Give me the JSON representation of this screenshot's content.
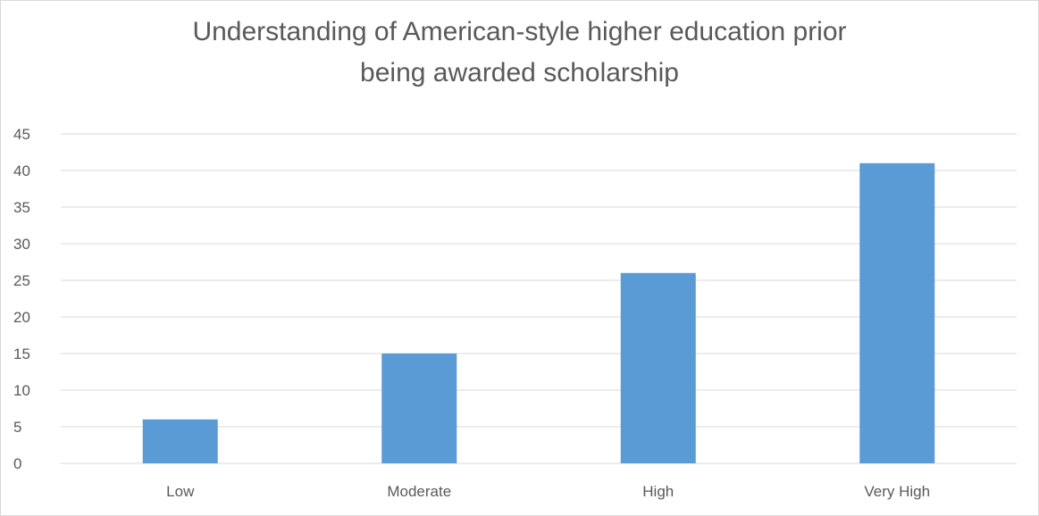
{
  "chart_data": {
    "type": "bar",
    "title_lines": [
      "Understanding of American-style higher education prior",
      "being awarded scholarship"
    ],
    "categories": [
      "Low",
      "Moderate",
      "High",
      "Very High"
    ],
    "values": [
      6,
      15,
      26,
      41
    ],
    "y_ticks": [
      "0",
      "5",
      "10",
      "15",
      "20",
      "25",
      "30",
      "35",
      "40",
      "45"
    ],
    "ylim": [
      0,
      45
    ],
    "xlabel": "",
    "ylabel": "",
    "grid": true,
    "legend": "none",
    "bar_color": "#5b9bd5",
    "grid_color": "#d9d9d9",
    "text_color": "#595959"
  }
}
